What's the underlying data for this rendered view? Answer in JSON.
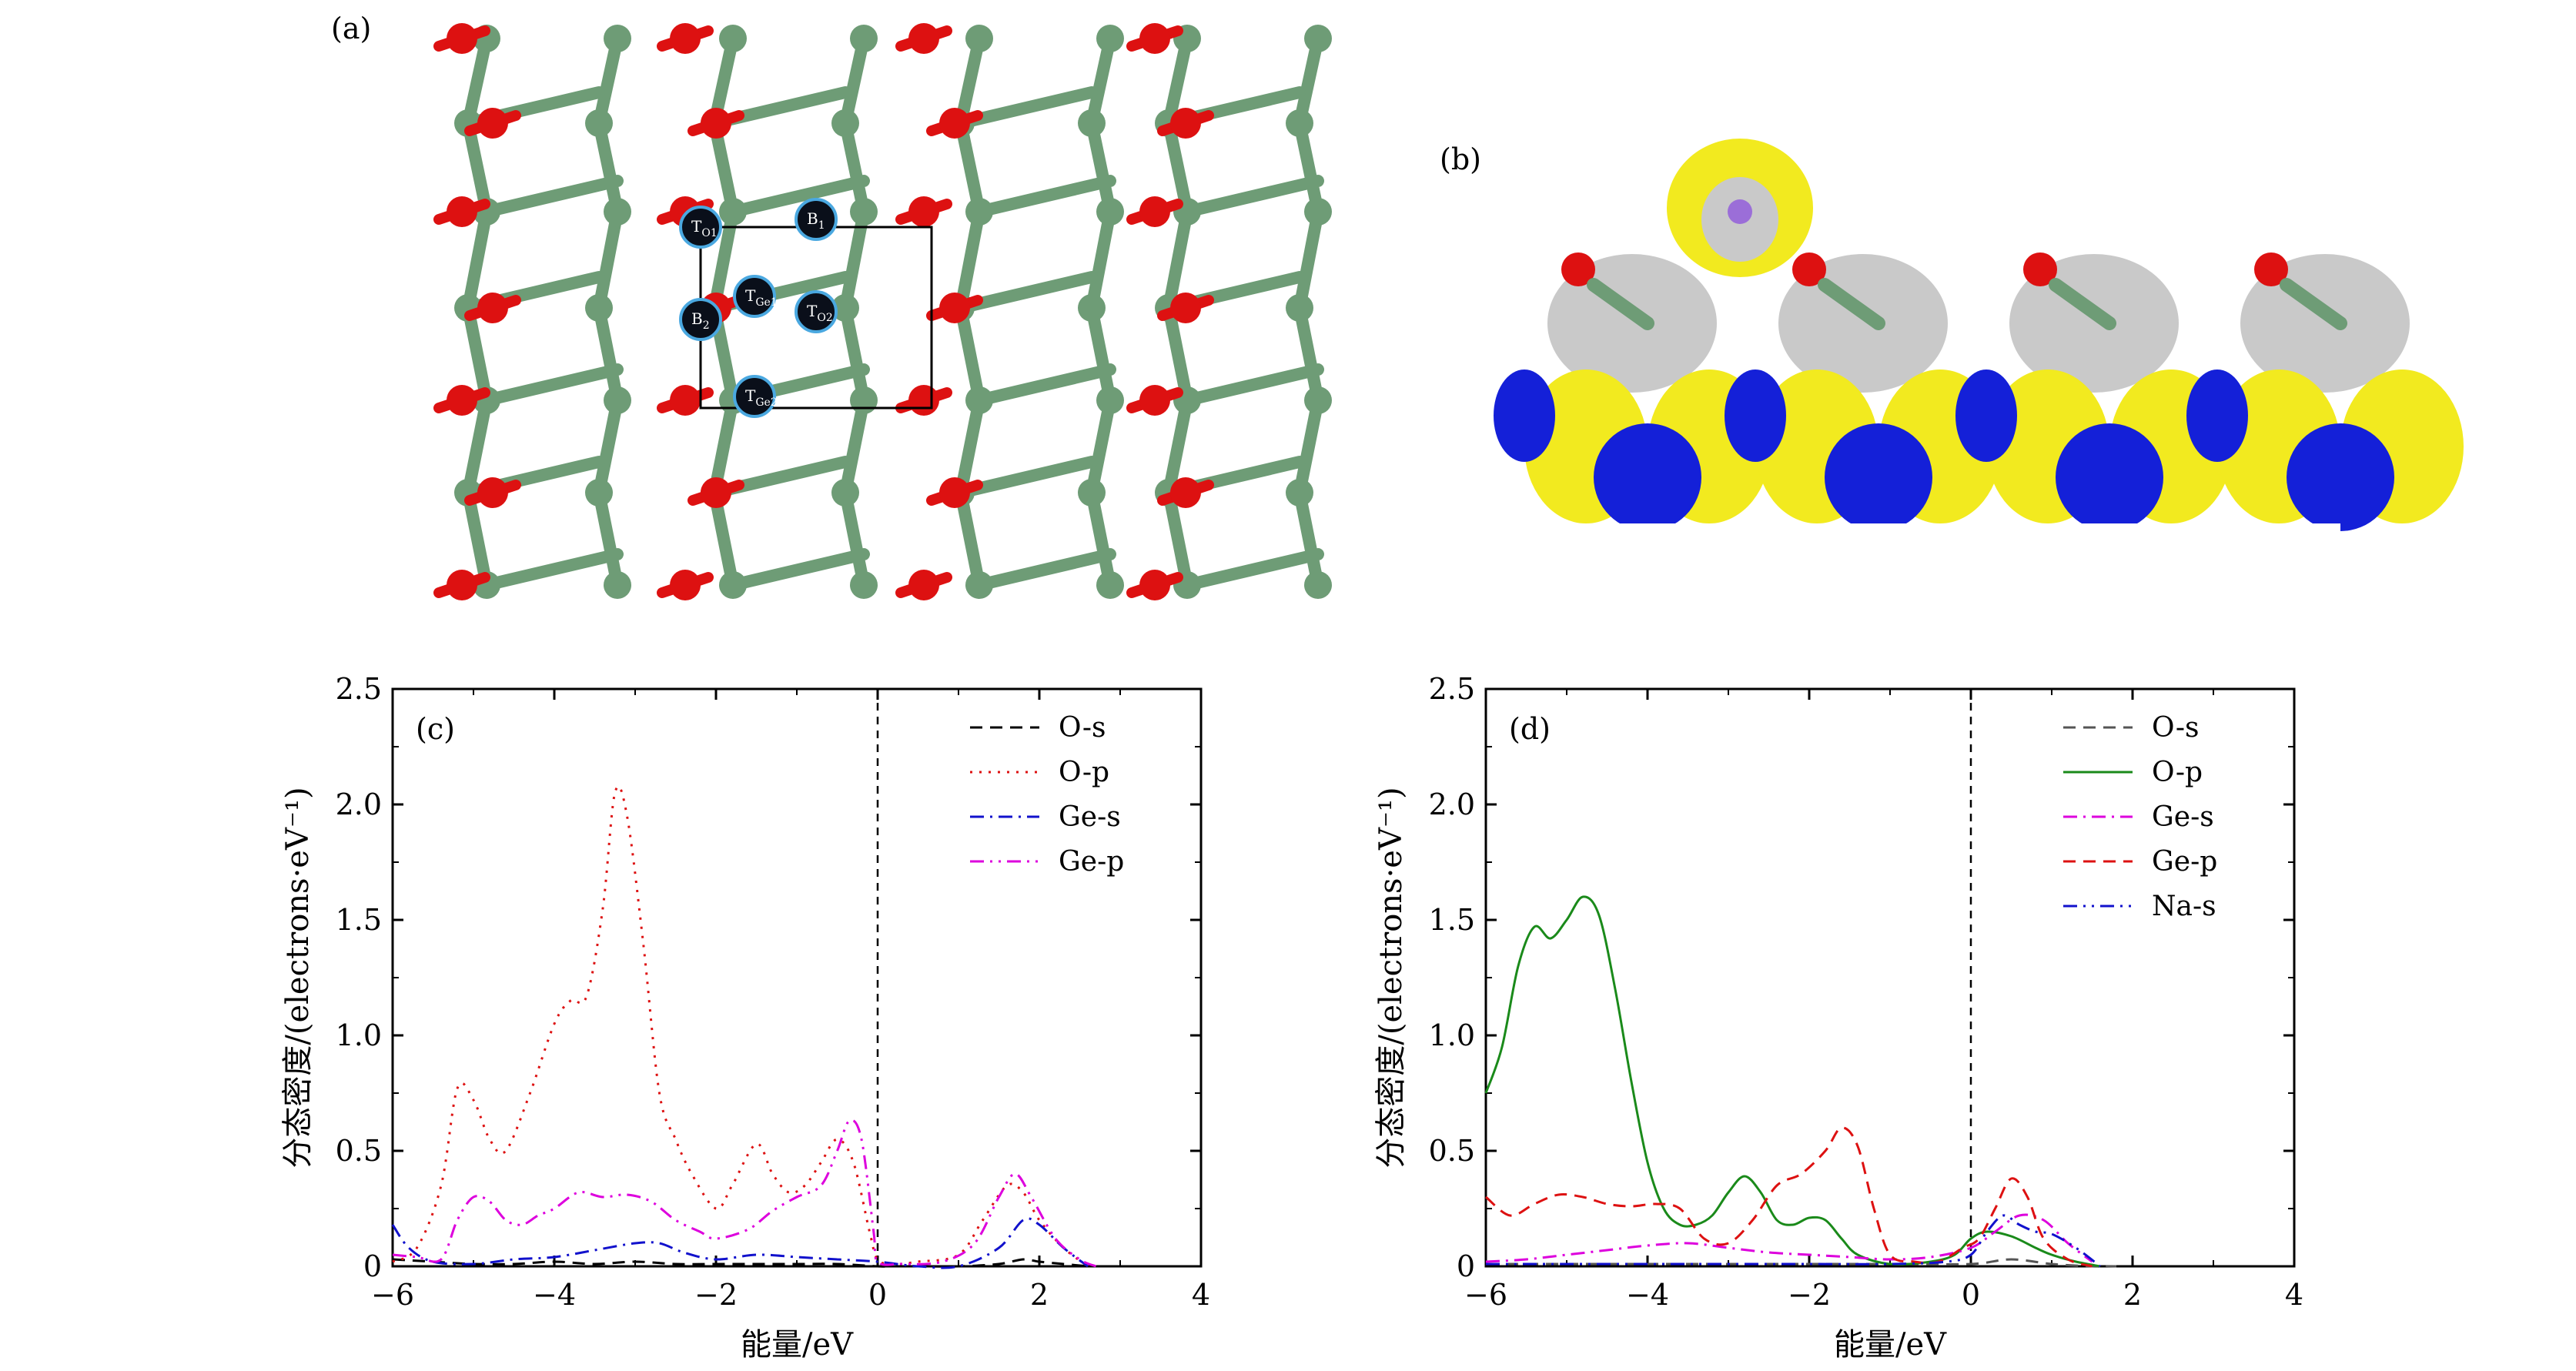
{
  "panel_a": {
    "label": "(a)",
    "sites": [
      {
        "name": "T_O1",
        "main": "T",
        "sub": "O1"
      },
      {
        "name": "B_1",
        "main": "B",
        "sub": "1"
      },
      {
        "name": "T_Ge1",
        "main": "T",
        "sub": "Ge1"
      },
      {
        "name": "T_O2",
        "main": "T",
        "sub": "O2"
      },
      {
        "name": "B_2",
        "main": "B",
        "sub": "2"
      },
      {
        "name": "T_Ge2",
        "main": "T",
        "sub": "Ge2"
      }
    ],
    "colors": {
      "ge": "#6e9c76",
      "o": "#dd1111",
      "site": "#0a0f1a",
      "site_ring": "#4aa8e0"
    }
  },
  "panel_b": {
    "label": "(b)",
    "colors": {
      "yellow": "#f2ea1f",
      "blue": "#1420d8",
      "gray": "#c9c9c9",
      "na": "#9b6ed8"
    }
  },
  "chart_data": [
    {
      "type": "line",
      "panel_label": "(c)",
      "xlabel": "能量/eV",
      "ylabel": "分态密度/(electrons·eV⁻¹)",
      "xlim": [
        -6,
        4
      ],
      "ylim": [
        0,
        2.5
      ],
      "xticks": [
        -6,
        -4,
        -2,
        0,
        2,
        4
      ],
      "yticks": [
        0,
        0.5,
        1.0,
        1.5,
        2.0,
        2.5
      ],
      "ytick_labels": [
        "0",
        "0.5",
        "1.0",
        "1.5",
        "2.0",
        "2.5"
      ],
      "fermi_level": 0,
      "legend_position": "top-right",
      "series": [
        {
          "name": "O-s",
          "color": "#000000",
          "dash": "dashed",
          "x": [
            -6,
            -5.5,
            -5,
            -4.5,
            -4,
            -3.5,
            -3,
            -2.5,
            -2,
            -1.5,
            -1,
            -0.5,
            0,
            0.2,
            0.5,
            1,
            1.5,
            1.8,
            2,
            2.3,
            2.6
          ],
          "y": [
            0.03,
            0.02,
            0.01,
            0.01,
            0.02,
            0.01,
            0.02,
            0.01,
            0.01,
            0.01,
            0.01,
            0.01,
            0,
            0,
            0,
            0,
            0.01,
            0.03,
            0.02,
            0.01,
            0
          ]
        },
        {
          "name": "O-p",
          "color": "#dd1111",
          "dash": "dotted",
          "x": [
            -6,
            -5.7,
            -5.4,
            -5.2,
            -5.0,
            -4.8,
            -4.6,
            -4.3,
            -4.0,
            -3.8,
            -3.6,
            -3.4,
            -3.25,
            -3.1,
            -2.9,
            -2.7,
            -2.5,
            -2.3,
            -2.0,
            -1.8,
            -1.5,
            -1.3,
            -1.1,
            -0.9,
            -0.7,
            -0.5,
            -0.3,
            -0.1,
            0,
            0.2,
            0.5,
            1.0,
            1.3,
            1.6,
            1.8,
            2.0,
            2.3,
            2.6
          ],
          "y": [
            0.02,
            0.08,
            0.35,
            0.77,
            0.72,
            0.55,
            0.5,
            0.75,
            1.05,
            1.15,
            1.17,
            1.55,
            2.05,
            1.95,
            1.4,
            0.75,
            0.55,
            0.4,
            0.25,
            0.35,
            0.53,
            0.4,
            0.32,
            0.35,
            0.45,
            0.55,
            0.45,
            0.15,
            0.03,
            0.01,
            0.02,
            0.05,
            0.2,
            0.35,
            0.32,
            0.2,
            0.08,
            0.0
          ]
        },
        {
          "name": "Ge-s",
          "color": "#1111cc",
          "dash": "dashdot",
          "x": [
            -6,
            -5.8,
            -5.5,
            -5.0,
            -4.5,
            -4.0,
            -3.5,
            -3.0,
            -2.7,
            -2.4,
            -2.0,
            -1.5,
            -1.0,
            -0.5,
            0,
            0.5,
            1.0,
            1.5,
            1.8,
            2.0,
            2.3,
            2.6
          ],
          "y": [
            0.18,
            0.08,
            0.02,
            0.01,
            0.03,
            0.04,
            0.07,
            0.1,
            0.1,
            0.06,
            0.03,
            0.05,
            0.04,
            0.03,
            0.02,
            0.0,
            0.0,
            0.08,
            0.2,
            0.18,
            0.08,
            0.0
          ]
        },
        {
          "name": "Ge-p",
          "color": "#dd00dd",
          "dash": "dashdotdot",
          "x": [
            -6,
            -5.7,
            -5.4,
            -5.2,
            -5.0,
            -4.8,
            -4.6,
            -4.4,
            -4.2,
            -4.0,
            -3.7,
            -3.4,
            -3.1,
            -2.8,
            -2.5,
            -2.2,
            -2.0,
            -1.6,
            -1.3,
            -1.0,
            -0.7,
            -0.5,
            -0.35,
            -0.2,
            -0.05,
            0,
            0.3,
            0.8,
            1.2,
            1.5,
            1.7,
            1.9,
            2.2,
            2.5,
            2.7
          ],
          "y": [
            0.05,
            0.04,
            0.03,
            0.2,
            0.3,
            0.28,
            0.2,
            0.18,
            0.22,
            0.25,
            0.32,
            0.3,
            0.31,
            0.28,
            0.2,
            0.15,
            0.12,
            0.16,
            0.24,
            0.3,
            0.35,
            0.5,
            0.63,
            0.55,
            0.15,
            0.02,
            0.01,
            0.02,
            0.1,
            0.3,
            0.4,
            0.3,
            0.12,
            0.03,
            0.0
          ]
        }
      ]
    },
    {
      "type": "line",
      "panel_label": "(d)",
      "xlabel": "能量/eV",
      "ylabel": "分态密度/(electrons·eV⁻¹)",
      "xlim": [
        -6,
        4
      ],
      "ylim": [
        0,
        2.5
      ],
      "xticks": [
        -6,
        -4,
        -2,
        0,
        2,
        4
      ],
      "yticks": [
        0,
        0.5,
        1.0,
        1.5,
        2.0,
        2.5
      ],
      "ytick_labels": [
        "0",
        "0.5",
        "1.0",
        "1.5",
        "2.0",
        "2.5"
      ],
      "fermi_level": 0,
      "legend_position": "top-right",
      "series": [
        {
          "name": "O-s",
          "color": "#555555",
          "dash": "dashed",
          "x": [
            -6,
            -5,
            -4,
            -3,
            -2,
            -1,
            0,
            0.5,
            1,
            1.5,
            1.8
          ],
          "y": [
            0.01,
            0.01,
            0.01,
            0.01,
            0.01,
            0.01,
            0.01,
            0.03,
            0.01,
            0.0,
            0.0
          ]
        },
        {
          "name": "O-p",
          "color": "#1a8a1a",
          "dash": "solid",
          "x": [
            -6,
            -5.8,
            -5.6,
            -5.4,
            -5.2,
            -5.0,
            -4.8,
            -4.6,
            -4.4,
            -4.2,
            -4.0,
            -3.8,
            -3.6,
            -3.4,
            -3.2,
            -3.0,
            -2.8,
            -2.6,
            -2.4,
            -2.2,
            -2.0,
            -1.8,
            -1.6,
            -1.4,
            -1.0,
            -0.5,
            -0.2,
            0,
            0.2,
            0.5,
            0.8,
            1.0,
            1.3,
            1.6
          ],
          "y": [
            0.75,
            0.95,
            1.3,
            1.47,
            1.42,
            1.5,
            1.6,
            1.52,
            1.2,
            0.8,
            0.45,
            0.25,
            0.18,
            0.18,
            0.22,
            0.32,
            0.39,
            0.32,
            0.2,
            0.18,
            0.21,
            0.2,
            0.12,
            0.05,
            0.01,
            0.02,
            0.05,
            0.12,
            0.15,
            0.13,
            0.08,
            0.05,
            0.02,
            0.0
          ]
        },
        {
          "name": "Ge-s",
          "color": "#dd00dd",
          "dash": "dashdot",
          "x": [
            -6,
            -5.5,
            -5,
            -4.5,
            -4,
            -3.5,
            -3,
            -2.5,
            -2,
            -1.5,
            -1,
            -0.5,
            0,
            0.3,
            0.6,
            0.9,
            1.2,
            1.5
          ],
          "y": [
            0.02,
            0.03,
            0.05,
            0.07,
            0.09,
            0.1,
            0.08,
            0.06,
            0.05,
            0.04,
            0.03,
            0.04,
            0.08,
            0.15,
            0.22,
            0.2,
            0.1,
            0.02
          ]
        },
        {
          "name": "Ge-p",
          "color": "#dd1111",
          "dash": "dashed",
          "x": [
            -6,
            -5.7,
            -5.4,
            -5.1,
            -4.8,
            -4.5,
            -4.2,
            -3.9,
            -3.6,
            -3.3,
            -3.0,
            -2.7,
            -2.4,
            -2.1,
            -1.8,
            -1.6,
            -1.4,
            -1.2,
            -1.0,
            -0.7,
            -0.4,
            -0.1,
            0.1,
            0.3,
            0.5,
            0.7,
            0.9,
            1.2,
            1.5
          ],
          "y": [
            0.3,
            0.22,
            0.27,
            0.31,
            0.3,
            0.27,
            0.26,
            0.27,
            0.25,
            0.12,
            0.1,
            0.2,
            0.35,
            0.4,
            0.5,
            0.6,
            0.52,
            0.25,
            0.05,
            0.02,
            0.02,
            0.08,
            0.12,
            0.25,
            0.38,
            0.3,
            0.12,
            0.03,
            0.0
          ]
        },
        {
          "name": "Na-s",
          "color": "#1111cc",
          "dash": "dashdotdot",
          "x": [
            -6,
            -5,
            -4,
            -3,
            -2,
            -1,
            -0.3,
            0,
            0.2,
            0.4,
            0.6,
            0.8,
            1.0,
            1.3,
            1.6
          ],
          "y": [
            0.01,
            0.01,
            0.01,
            0.01,
            0.01,
            0.01,
            0.02,
            0.05,
            0.15,
            0.22,
            0.18,
            0.15,
            0.14,
            0.08,
            0.0
          ]
        }
      ]
    }
  ]
}
